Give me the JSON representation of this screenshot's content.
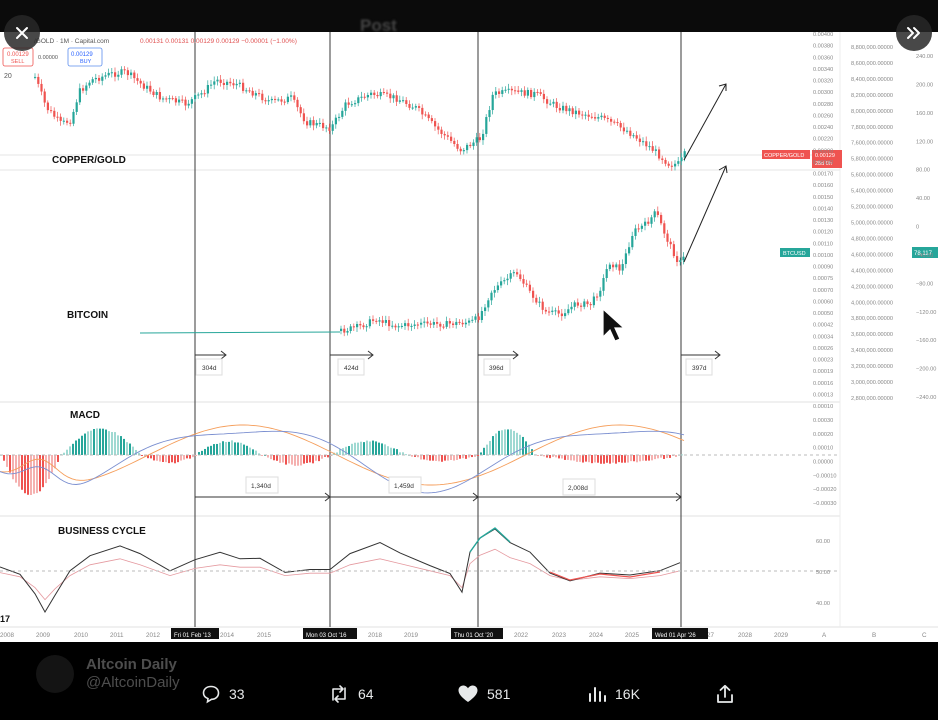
{
  "chart": {
    "symbol_line": "/GOLD · 1M · Capital.com",
    "ohlc": "0.00131  0.00131  0.00129  0.00129  −0.00001 (−1.00%)",
    "sell_price": "0.00129",
    "sell_label": "SELL",
    "mid_value": "0.00000",
    "buy_price": "0.00129",
    "buy_label": "BUY",
    "interval_badge": "20",
    "tv_logo": "17",
    "colors": {
      "up": "#26a69a",
      "down": "#ef5350",
      "price_tag": "#ef5350",
      "btc_tag": "#26a69a"
    },
    "panes": [
      {
        "name": "COPPER/GOLD"
      },
      {
        "name": "BITCOIN"
      },
      {
        "name": "MACD"
      },
      {
        "name": "BUSINESS CYCLE"
      }
    ],
    "cg_axis": [
      "0.00400",
      "0.00380",
      "0.00360",
      "0.00340",
      "0.00320",
      "0.00300",
      "0.00280",
      "0.00260",
      "0.00240",
      "0.00220",
      "0.00200",
      "0.00190",
      "0.00170",
      "0.00160",
      "0.00150",
      "0.00140",
      "0.00130",
      "0.00120",
      "0.00110",
      "0.00100",
      "0.00090",
      "0.00075",
      "0.00070",
      "0.00060",
      "0.00050",
      "0.00042",
      "0.00034",
      "0.00026",
      "0.00023",
      "0.00019",
      "0.00016",
      "0.00013",
      "0.00010"
    ],
    "big_axis": [
      "8,800,000.00000",
      "8,600,000.00000",
      "8,400,000.00000",
      "8,200,000.00000",
      "8,000,000.00000",
      "7,800,000.00000",
      "7,600,000.00000",
      "5,800,000.00000",
      "5,600,000.00000",
      "5,400,000.00000",
      "5,200,000.00000",
      "5,000,000.00000",
      "4,800,000.00000",
      "4,600,000.00000",
      "4,400,000.00000",
      "4,200,000.00000",
      "4,000,000.00000",
      "3,800,000.00000",
      "3,600,000.00000",
      "3,400,000.00000",
      "3,200,000.00000",
      "3,000,000.00000",
      "2,800,000.00000"
    ],
    "right_axis": [
      "240.00",
      "200.00",
      "160.00",
      "120.00",
      "80.00",
      "40.00",
      "0",
      "−40.00",
      "−80.00",
      "−120.00",
      "−160.00",
      "−200.00",
      "−240.00"
    ],
    "macd_axis": [
      "0.00030",
      "0.00020",
      "0.00010",
      "0.00000",
      "−0.00010",
      "−0.00020",
      "−0.00030"
    ],
    "bc_axis": [
      "60.00",
      "50.00",
      "40.00"
    ],
    "copper_gold_tag": "COPPER/GOLD",
    "copper_gold_value": "0.00129",
    "copper_gold_time": "28d 0h",
    "btcusd_tag": "BTCUSD",
    "btcusd_value": "78,117",
    "measure_up": [
      "304d",
      "424d",
      "396d",
      "397d"
    ],
    "measure_low": [
      "1,340d",
      "1,459d",
      "2,008d"
    ],
    "year_labels": [
      "2008",
      "2009",
      "2010",
      "2011",
      "2012",
      "2014",
      "2015",
      "2017",
      "2018",
      "2019",
      "2022",
      "2023",
      "2024",
      "2025",
      "2027",
      "2028",
      "2029",
      "A",
      "B",
      "C"
    ],
    "date_tags": [
      "Fri 01 Feb '13",
      "Mon 03 Oct '16",
      "Thu 01 Oct '20",
      "Wed 01 Apr '26"
    ]
  },
  "overlay": {
    "title_blur": "Post"
  },
  "author": {
    "name": "Altcoin Daily",
    "handle": "@AltcoinDaily"
  },
  "actions": {
    "replies": "33",
    "reposts": "64",
    "likes": "581",
    "views": "16K"
  },
  "icons": [
    "close-icon",
    "double-chevron-right-icon",
    "comment-icon",
    "repost-icon",
    "heart-icon",
    "views-icon",
    "share-icon",
    "cursor-icon"
  ]
}
